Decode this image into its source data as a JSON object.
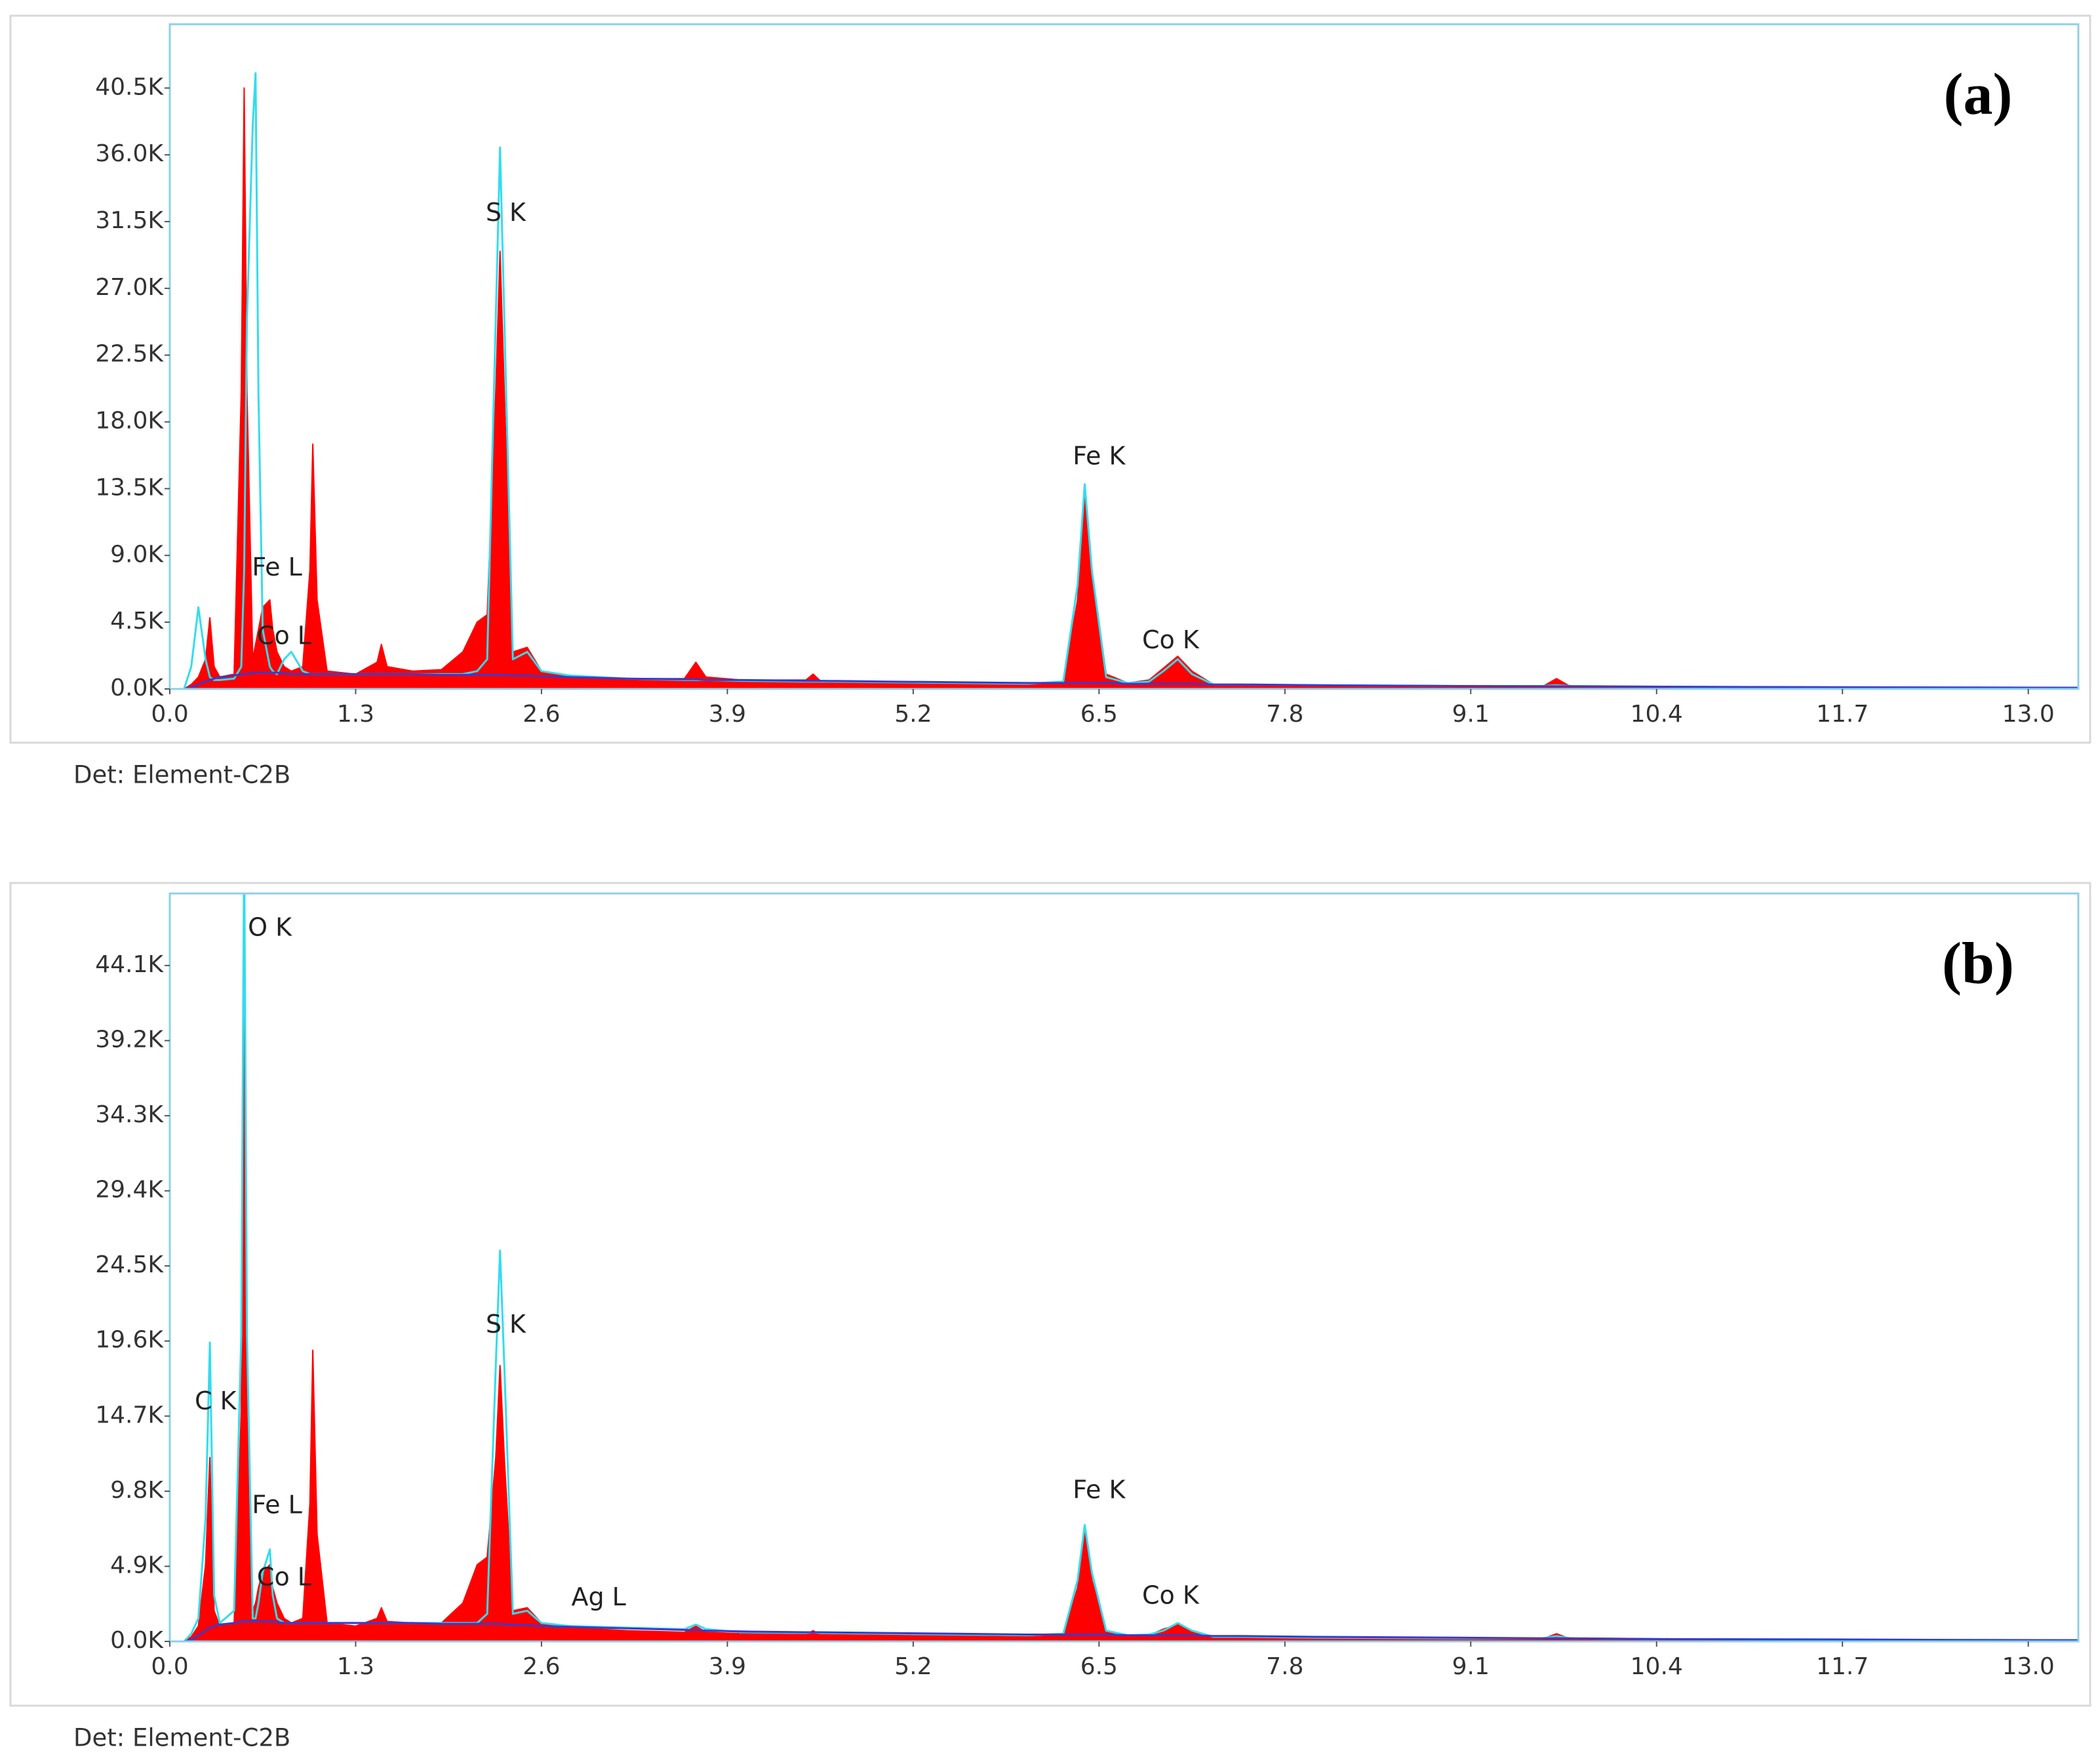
{
  "chart_data": [
    {
      "type": "area",
      "label": "(a)",
      "footer": "Det: Element-C2B",
      "xlim": [
        0,
        13.35
      ],
      "ylim": [
        0,
        44800
      ],
      "xticks": [
        {
          "value": 0,
          "label": "0.0"
        },
        1.3,
        2.6,
        3.9,
        5.2,
        6.5,
        7.8,
        9.1,
        10.4,
        11.7,
        {
          "value": 13,
          "label": "13.0"
        }
      ],
      "yticks": [
        {
          "value": 0,
          "label": "0.0K"
        },
        {
          "value": 4500,
          "label": "4.5K"
        },
        {
          "value": 9000,
          "label": "9.0K"
        },
        {
          "value": 13500,
          "label": "13.5K"
        },
        {
          "value": 18000,
          "label": "18.0K"
        },
        {
          "value": 22500,
          "label": "22.5K"
        },
        {
          "value": 27000,
          "label": "27.0K"
        },
        {
          "value": 31500,
          "label": "31.5K"
        },
        {
          "value": 36000,
          "label": "36.0K"
        },
        {
          "value": 40500,
          "label": "40.5K"
        }
      ],
      "x": [
        0,
        0.1,
        0.15,
        0.2,
        0.25,
        0.28,
        0.31,
        0.35,
        0.45,
        0.5,
        0.52,
        0.54,
        0.58,
        0.6,
        0.62,
        0.65,
        0.7,
        0.72,
        0.75,
        0.8,
        0.85,
        0.93,
        0.98,
        1.0,
        1.03,
        1.1,
        1.3,
        1.45,
        1.48,
        1.52,
        1.7,
        1.9,
        2.05,
        2.15,
        2.22,
        2.28,
        2.31,
        2.34,
        2.4,
        2.5,
        2.6,
        2.8,
        3.2,
        3.6,
        3.68,
        3.75,
        4.0,
        4.45,
        4.5,
        4.55,
        5.0,
        5.5,
        6.0,
        6.25,
        6.35,
        6.4,
        6.45,
        6.55,
        6.7,
        6.85,
        6.95,
        7.05,
        7.15,
        7.3,
        7.5,
        8.0,
        9.0,
        9.6,
        9.7,
        9.8,
        10.5,
        11.5,
        12.5,
        13.4
      ],
      "series": [
        {
          "color": "#ff0000",
          "fill": true,
          "values": [
            0,
            0,
            300,
            800,
            2000,
            4800,
            1500,
            800,
            1000,
            20000,
            40500,
            20000,
            2000,
            3000,
            4000,
            5500,
            6000,
            4000,
            2500,
            1500,
            1200,
            1500,
            8000,
            16500,
            6000,
            1200,
            1000,
            1800,
            3000,
            1500,
            1200,
            1300,
            2500,
            4500,
            5000,
            20000,
            29500,
            20000,
            2500,
            2800,
            1200,
            900,
            700,
            700,
            1800,
            800,
            600,
            600,
            1000,
            550,
            450,
            400,
            350,
            500,
            6000,
            13500,
            8000,
            1000,
            400,
            600,
            1400,
            2200,
            1200,
            300,
            250,
            200,
            150,
            150,
            700,
            150,
            100,
            80,
            60,
            50
          ]
        },
        {
          "color": "#33dcee",
          "fill": false,
          "values": [
            0,
            0,
            1500,
            5500,
            2000,
            800,
            600,
            600,
            700,
            1500,
            8000,
            25000,
            38000,
            41500,
            20000,
            4000,
            1500,
            1200,
            1000,
            2000,
            2500,
            1200,
            1000,
            1000,
            1000,
            1000,
            1000,
            1000,
            1000,
            1000,
            1000,
            1000,
            1000,
            1200,
            2000,
            25000,
            36500,
            25000,
            2000,
            2500,
            1200,
            900,
            700,
            600,
            600,
            600,
            550,
            500,
            500,
            500,
            450,
            400,
            350,
            500,
            7000,
            13800,
            8000,
            800,
            400,
            500,
            1200,
            2000,
            1000,
            300,
            300,
            250,
            200,
            200,
            250,
            200,
            150,
            120,
            100,
            80
          ]
        },
        {
          "color": "#3a3acc",
          "fill": false,
          "values": [
            0,
            0,
            100,
            300,
            500,
            600,
            700,
            800,
            900,
            1000,
            1000,
            1000,
            1100,
            1100,
            1100,
            1100,
            1100,
            1100,
            1100,
            1050,
            1000,
            1000,
            1000,
            1000,
            1000,
            1000,
            1000,
            1000,
            1000,
            1000,
            1000,
            950,
            950,
            950,
            950,
            950,
            950,
            950,
            900,
            900,
            850,
            800,
            700,
            650,
            650,
            600,
            600,
            550,
            550,
            550,
            500,
            450,
            400,
            400,
            400,
            400,
            400,
            400,
            350,
            350,
            350,
            350,
            350,
            300,
            300,
            250,
            200,
            180,
            180,
            180,
            150,
            120,
            100,
            80
          ]
        }
      ],
      "annotations": [
        {
          "text": "S K",
          "x": 2.35,
          "y": 32000
        },
        {
          "text": "Fe K",
          "x": 6.5,
          "y": 15600
        },
        {
          "text": "Fe L",
          "x": 0.75,
          "y": 8100
        },
        {
          "text": "Co L",
          "x": 0.8,
          "y": 3500
        },
        {
          "text": "Co K",
          "x": 7.0,
          "y": 3200
        }
      ]
    },
    {
      "type": "area",
      "label": "(b)",
      "footer": "Det: Element-C2B",
      "xlim": [
        0,
        13.35
      ],
      "ylim": [
        0,
        48800
      ],
      "xticks": [
        {
          "value": 0,
          "label": "0.0"
        },
        1.3,
        2.6,
        3.9,
        5.2,
        6.5,
        7.8,
        9.1,
        10.4,
        11.7,
        {
          "value": 13,
          "label": "13.0"
        }
      ],
      "yticks": [
        {
          "value": 0,
          "label": "0.0K"
        },
        {
          "value": 4900,
          "label": "4.9K"
        },
        {
          "value": 9800,
          "label": "9.8K"
        },
        {
          "value": 14700,
          "label": "14.7K"
        },
        {
          "value": 19600,
          "label": "19.6K"
        },
        {
          "value": 24500,
          "label": "24.5K"
        },
        {
          "value": 29400,
          "label": "29.4K"
        },
        {
          "value": 34300,
          "label": "34.3K"
        },
        {
          "value": 39200,
          "label": "39.2K"
        },
        {
          "value": 44100,
          "label": "44.1K"
        }
      ],
      "x": [
        0,
        0.1,
        0.15,
        0.2,
        0.25,
        0.28,
        0.31,
        0.35,
        0.45,
        0.5,
        0.52,
        0.54,
        0.58,
        0.6,
        0.62,
        0.65,
        0.7,
        0.72,
        0.75,
        0.8,
        0.85,
        0.93,
        0.98,
        1.0,
        1.03,
        1.1,
        1.3,
        1.45,
        1.48,
        1.52,
        1.7,
        1.9,
        2.05,
        2.15,
        2.22,
        2.28,
        2.31,
        2.34,
        2.4,
        2.5,
        2.6,
        2.8,
        3.2,
        3.6,
        3.68,
        3.75,
        4.0,
        4.45,
        4.5,
        4.55,
        5.0,
        5.5,
        6.0,
        6.25,
        6.35,
        6.4,
        6.45,
        6.55,
        6.7,
        6.85,
        6.95,
        7.05,
        7.15,
        7.3,
        7.5,
        8.0,
        9.0,
        9.6,
        9.7,
        9.8,
        10.5,
        11.5,
        12.5,
        13.4
      ],
      "series": [
        {
          "color": "#ff0000",
          "fill": true,
          "values": [
            0,
            0,
            300,
            1000,
            5000,
            12000,
            2000,
            1000,
            1200,
            15000,
            41000,
            15000,
            2000,
            2500,
            3500,
            4500,
            5000,
            3500,
            2500,
            1500,
            1200,
            1500,
            9000,
            19000,
            7000,
            1200,
            1000,
            1500,
            2200,
            1300,
            1200,
            1200,
            2500,
            5000,
            5500,
            12000,
            18000,
            12000,
            2000,
            2200,
            1200,
            900,
            700,
            600,
            1000,
            600,
            500,
            450,
            700,
            450,
            400,
            350,
            300,
            400,
            3500,
            7200,
            4000,
            700,
            350,
            400,
            800,
            1100,
            700,
            300,
            250,
            200,
            150,
            150,
            500,
            150,
            100,
            150,
            60,
            50
          ]
        },
        {
          "color": "#33dcee",
          "fill": false,
          "values": [
            0,
            0,
            500,
            1500,
            8000,
            19500,
            3000,
            1200,
            2000,
            20000,
            52000,
            20000,
            1500,
            1500,
            2500,
            4500,
            6000,
            3000,
            1500,
            1200,
            1200,
            1200,
            1200,
            1200,
            1200,
            1200,
            1200,
            1200,
            1200,
            1200,
            1200,
            1200,
            1200,
            1200,
            1800,
            18000,
            25500,
            18000,
            1800,
            2000,
            1200,
            1000,
            900,
            800,
            1100,
            800,
            600,
            550,
            600,
            550,
            500,
            450,
            400,
            500,
            4000,
            7600,
            4500,
            700,
            400,
            450,
            700,
            1200,
            700,
            300,
            300,
            250,
            200,
            200,
            350,
            200,
            150,
            150,
            100,
            80
          ]
        },
        {
          "color": "#3a3acc",
          "fill": false,
          "values": [
            0,
            0,
            100,
            400,
            700,
            900,
            1000,
            1100,
            1200,
            1300,
            1300,
            1300,
            1300,
            1300,
            1300,
            1300,
            1300,
            1300,
            1250,
            1200,
            1200,
            1200,
            1200,
            1200,
            1200,
            1200,
            1200,
            1200,
            1200,
            1200,
            1200,
            1150,
            1150,
            1150,
            1150,
            1150,
            1150,
            1100,
            1100,
            1050,
            1000,
            950,
            850,
            750,
            750,
            700,
            650,
            600,
            600,
            600,
            550,
            500,
            450,
            450,
            450,
            450,
            450,
            450,
            400,
            400,
            400,
            400,
            400,
            350,
            350,
            300,
            250,
            200,
            200,
            200,
            150,
            120,
            100,
            80
          ]
        }
      ],
      "annotations": [
        {
          "text": "O K",
          "x": 0.7,
          "y": 46500
        },
        {
          "text": "C K",
          "x": 0.32,
          "y": 15600
        },
        {
          "text": "Fe L",
          "x": 0.75,
          "y": 8800
        },
        {
          "text": "Co L",
          "x": 0.8,
          "y": 4100
        },
        {
          "text": "S K",
          "x": 2.35,
          "y": 20600
        },
        {
          "text": "Ag L",
          "x": 3.0,
          "y": 2800
        },
        {
          "text": "Fe K",
          "x": 6.5,
          "y": 9800
        },
        {
          "text": "Co K",
          "x": 7.0,
          "y": 2900
        }
      ]
    }
  ]
}
